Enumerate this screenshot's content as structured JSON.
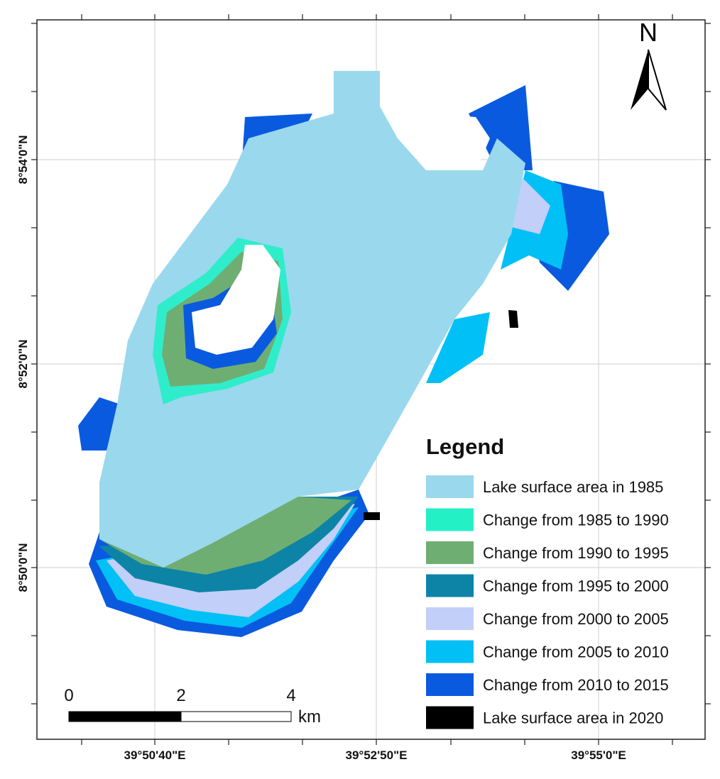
{
  "legend": {
    "title": "Legend",
    "items": [
      {
        "label": "Lake surface area in 1985",
        "color": "#9ad8ee"
      },
      {
        "label": "Change from 1985 to 1990",
        "color": "#24f0c6"
      },
      {
        "label": "Change from 1990 to 1995",
        "color": "#6fae72"
      },
      {
        "label": "Change from 1995 to 2000",
        "color": "#0d84a6"
      },
      {
        "label": "Change from 2000 to 2005",
        "color": "#c2cff8"
      },
      {
        "label": "Change from 2005 to 2010",
        "color": "#00c0f5"
      },
      {
        "label": "Change from 2010 to 2015",
        "color": "#0a5adf"
      },
      {
        "label": "Lake surface area in 2020",
        "color": "#000000"
      }
    ]
  },
  "north_arrow": {
    "label": "N"
  },
  "scale_bar": {
    "labels": [
      0,
      2,
      4
    ],
    "unit": "km"
  },
  "latitude_labels": [
    "8°54'0\"N",
    "8°52'0\"N",
    "8°50'0\"N"
  ],
  "longitude_labels": [
    "39°50'40\"E",
    "39°52'50\"E",
    "39°55'0\"E"
  ]
}
